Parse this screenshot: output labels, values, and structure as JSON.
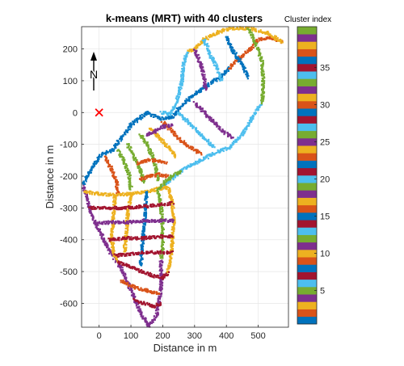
{
  "chart_data": {
    "type": "scatter",
    "title": "k-means (MRT) with 40 clusters",
    "xlabel": "Distance in m",
    "ylabel": "Distance in m",
    "xlim": [
      -55,
      595
    ],
    "ylim": [
      -675,
      270
    ],
    "xticks": [
      0,
      100,
      200,
      300,
      400,
      500
    ],
    "yticks": [
      200,
      100,
      0,
      -100,
      -200,
      -300,
      -400,
      -500,
      -600
    ],
    "xtick_labels": [
      "0",
      "100",
      "200",
      "300",
      "400",
      "500"
    ],
    "ytick_labels": [
      "200",
      "100",
      "0",
      "-100",
      "-200",
      "-300",
      "-400",
      "-500",
      "-600"
    ],
    "grid": true,
    "origin_marker": {
      "x": 0,
      "y": 0,
      "symbol": "x",
      "color": "#ff0000"
    },
    "north_arrow": {
      "label": "N"
    },
    "colorbar": {
      "label": "Cluster index",
      "range": [
        1,
        40
      ],
      "ticks": [
        5,
        10,
        15,
        20,
        25,
        30,
        35
      ],
      "tick_labels": [
        "5",
        "10",
        "15",
        "20",
        "25",
        "30",
        "35"
      ],
      "colors": [
        "#0072bd",
        "#d95319",
        "#edb120",
        "#7e2f8e",
        "#77ac30",
        "#4dbeee",
        "#a2142f",
        "#0072bd",
        "#d95319",
        "#edb120",
        "#7e2f8e",
        "#77ac30",
        "#4dbeee",
        "#a2142f",
        "#0072bd",
        "#d95319",
        "#edb120",
        "#7e2f8e",
        "#77ac30",
        "#4dbeee",
        "#a2142f",
        "#0072bd",
        "#d95319",
        "#edb120",
        "#7e2f8e",
        "#77ac30",
        "#4dbeee",
        "#a2142f",
        "#0072bd",
        "#d95319",
        "#edb120",
        "#7e2f8e",
        "#77ac30",
        "#4dbeee",
        "#a2142f",
        "#0072bd",
        "#d95319",
        "#edb120",
        "#7e2f8e",
        "#77ac30"
      ]
    },
    "series": [
      {
        "cluster": 4,
        "path": [
          [
            -50,
            -230
          ],
          [
            -20,
            -330
          ],
          [
            30,
            -430
          ],
          [
            70,
            -490
          ],
          [
            100,
            -560
          ],
          [
            135,
            -640
          ],
          [
            155,
            -670
          ]
        ]
      },
      {
        "cluster": 11,
        "path": [
          [
            155,
            -670
          ],
          [
            180,
            -640
          ],
          [
            195,
            -560
          ],
          [
            195,
            -450
          ]
        ]
      },
      {
        "cluster": 15,
        "path": [
          [
            -50,
            -225
          ],
          [
            -20,
            -170
          ],
          [
            10,
            -130
          ],
          [
            40,
            -120
          ]
        ]
      },
      {
        "cluster": 8,
        "path": [
          [
            40,
            -120
          ],
          [
            70,
            -80
          ],
          [
            100,
            -40
          ],
          [
            125,
            -20
          ],
          [
            150,
            0
          ]
        ]
      },
      {
        "cluster": 22,
        "path": [
          [
            150,
            0
          ],
          [
            190,
            -20
          ],
          [
            230,
            -15
          ],
          [
            240,
            0
          ]
        ]
      },
      {
        "cluster": 29,
        "path": [
          [
            240,
            0
          ],
          [
            280,
            40
          ],
          [
            330,
            80
          ],
          [
            380,
            110
          ],
          [
            410,
            140
          ]
        ]
      },
      {
        "cluster": 9,
        "path": [
          [
            410,
            140
          ],
          [
            440,
            170
          ],
          [
            480,
            205
          ],
          [
            500,
            230
          ],
          [
            540,
            235
          ],
          [
            575,
            220
          ]
        ]
      },
      {
        "cluster": 3,
        "path": [
          [
            575,
            220
          ],
          [
            530,
            250
          ],
          [
            470,
            265
          ],
          [
            420,
            265
          ],
          [
            380,
            255
          ],
          [
            330,
            230
          ],
          [
            300,
            200
          ],
          [
            275,
            190
          ]
        ]
      },
      {
        "cluster": 6,
        "path": [
          [
            275,
            190
          ],
          [
            265,
            150
          ],
          [
            260,
            100
          ],
          [
            250,
            60
          ],
          [
            240,
            20
          ],
          [
            220,
            -5
          ],
          [
            195,
            0
          ]
        ]
      },
      {
        "cluster": 13,
        "path": [
          [
            510,
            30
          ],
          [
            490,
            0
          ],
          [
            470,
            -40
          ],
          [
            440,
            -80
          ],
          [
            410,
            -110
          ],
          [
            380,
            -120
          ],
          [
            360,
            -130
          ]
        ]
      },
      {
        "cluster": 20,
        "path": [
          [
            360,
            -130
          ],
          [
            320,
            -150
          ],
          [
            280,
            -170
          ],
          [
            250,
            -190
          ],
          [
            220,
            -215
          ],
          [
            200,
            -235
          ]
        ]
      },
      {
        "cluster": 12,
        "path": [
          [
            470,
            265
          ],
          [
            490,
            220
          ],
          [
            510,
            170
          ],
          [
            515,
            120
          ],
          [
            515,
            60
          ],
          [
            510,
            30
          ]
        ]
      },
      {
        "cluster": 1,
        "path": [
          [
            400,
            240
          ],
          [
            420,
            195
          ],
          [
            450,
            150
          ],
          [
            470,
            110
          ]
        ]
      },
      {
        "cluster": 27,
        "path": [
          [
            330,
            230
          ],
          [
            350,
            180
          ],
          [
            370,
            140
          ],
          [
            385,
            100
          ]
        ]
      },
      {
        "cluster": 18,
        "path": [
          [
            300,
            200
          ],
          [
            320,
            150
          ],
          [
            330,
            110
          ],
          [
            335,
            70
          ]
        ]
      },
      {
        "cluster": 25,
        "path": [
          [
            300,
            30
          ],
          [
            330,
            0
          ],
          [
            360,
            -30
          ],
          [
            390,
            -60
          ],
          [
            420,
            -80
          ]
        ]
      },
      {
        "cluster": 34,
        "path": [
          [
            250,
            0
          ],
          [
            280,
            -30
          ],
          [
            310,
            -60
          ],
          [
            340,
            -90
          ],
          [
            360,
            -110
          ]
        ]
      },
      {
        "cluster": 16,
        "path": [
          [
            200,
            -30
          ],
          [
            230,
            -60
          ],
          [
            260,
            -90
          ],
          [
            290,
            -110
          ],
          [
            320,
            -130
          ]
        ]
      },
      {
        "cluster": 31,
        "path": [
          [
            160,
            -50
          ],
          [
            190,
            -80
          ],
          [
            220,
            -110
          ],
          [
            240,
            -140
          ]
        ]
      },
      {
        "cluster": 5,
        "path": [
          [
            130,
            -70
          ],
          [
            150,
            -100
          ],
          [
            170,
            -140
          ],
          [
            180,
            -180
          ],
          [
            185,
            -215
          ]
        ]
      },
      {
        "cluster": 19,
        "path": [
          [
            90,
            -100
          ],
          [
            110,
            -140
          ],
          [
            130,
            -180
          ],
          [
            140,
            -220
          ]
        ]
      },
      {
        "cluster": 26,
        "path": [
          [
            60,
            -120
          ],
          [
            80,
            -160
          ],
          [
            95,
            -200
          ],
          [
            100,
            -240
          ]
        ]
      },
      {
        "cluster": 2,
        "path": [
          [
            20,
            -140
          ],
          [
            40,
            -180
          ],
          [
            55,
            -220
          ],
          [
            60,
            -260
          ]
        ]
      },
      {
        "cluster": 24,
        "path": [
          [
            -45,
            -250
          ],
          [
            0,
            -255
          ],
          [
            50,
            -260
          ],
          [
            100,
            -255
          ],
          [
            150,
            -250
          ],
          [
            185,
            -240
          ],
          [
            215,
            -235
          ]
        ]
      },
      {
        "cluster": 10,
        "path": [
          [
            215,
            -235
          ],
          [
            230,
            -280
          ],
          [
            235,
            -340
          ],
          [
            230,
            -410
          ],
          [
            225,
            -460
          ],
          [
            215,
            -500
          ]
        ]
      },
      {
        "cluster": 33,
        "path": [
          [
            185,
            -240
          ],
          [
            195,
            -300
          ],
          [
            200,
            -360
          ],
          [
            200,
            -420
          ],
          [
            195,
            -460
          ]
        ]
      },
      {
        "cluster": 17,
        "path": [
          [
            50,
            -260
          ],
          [
            45,
            -330
          ],
          [
            40,
            -390
          ],
          [
            45,
            -440
          ],
          [
            60,
            -470
          ]
        ]
      },
      {
        "cluster": 38,
        "path": [
          [
            100,
            -255
          ],
          [
            90,
            -320
          ],
          [
            85,
            -380
          ],
          [
            80,
            -440
          ]
        ]
      },
      {
        "cluster": 36,
        "path": [
          [
            150,
            -250
          ],
          [
            145,
            -310
          ],
          [
            140,
            -370
          ],
          [
            135,
            -430
          ],
          [
            130,
            -480
          ]
        ]
      },
      {
        "cluster": 21,
        "path": [
          [
            -30,
            -300
          ],
          [
            30,
            -300
          ],
          [
            80,
            -300
          ],
          [
            140,
            -295
          ],
          [
            195,
            -290
          ],
          [
            230,
            -285
          ]
        ]
      },
      {
        "cluster": 39,
        "path": [
          [
            -10,
            -350
          ],
          [
            40,
            -345
          ],
          [
            90,
            -345
          ],
          [
            140,
            -340
          ],
          [
            200,
            -340
          ],
          [
            235,
            -340
          ]
        ]
      },
      {
        "cluster": 7,
        "path": [
          [
            30,
            -400
          ],
          [
            85,
            -395
          ],
          [
            140,
            -395
          ],
          [
            200,
            -390
          ],
          [
            232,
            -390
          ]
        ]
      },
      {
        "cluster": 28,
        "path": [
          [
            50,
            -450
          ],
          [
            100,
            -445
          ],
          [
            150,
            -440
          ],
          [
            200,
            -440
          ],
          [
            228,
            -440
          ]
        ]
      },
      {
        "cluster": 14,
        "path": [
          [
            60,
            -470
          ],
          [
            110,
            -490
          ],
          [
            160,
            -510
          ],
          [
            200,
            -520
          ],
          [
            215,
            -505
          ]
        ]
      },
      {
        "cluster": 23,
        "path": [
          [
            70,
            -530
          ],
          [
            110,
            -550
          ],
          [
            150,
            -560
          ],
          [
            190,
            -570
          ]
        ]
      },
      {
        "cluster": 35,
        "path": [
          [
            110,
            -590
          ],
          [
            140,
            -600
          ],
          [
            175,
            -610
          ],
          [
            195,
            -600
          ]
        ]
      },
      {
        "cluster": 30,
        "path": [
          [
            130,
            -210
          ],
          [
            160,
            -200
          ],
          [
            190,
            -195
          ],
          [
            215,
            -200
          ]
        ]
      },
      {
        "cluster": 37,
        "path": [
          [
            120,
            -160
          ],
          [
            150,
            -150
          ],
          [
            180,
            -150
          ],
          [
            210,
            -160
          ]
        ]
      },
      {
        "cluster": 32,
        "path": [
          [
            150,
            -70
          ],
          [
            175,
            -60
          ],
          [
            200,
            -45
          ],
          [
            230,
            -40
          ]
        ]
      },
      {
        "cluster": 40,
        "path": [
          [
            190,
            -235
          ],
          [
            210,
            -215
          ],
          [
            230,
            -200
          ],
          [
            260,
            -185
          ]
        ]
      }
    ]
  }
}
